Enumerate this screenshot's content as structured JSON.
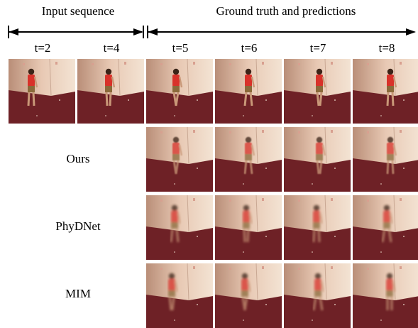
{
  "header": {
    "input_title": "Input sequence",
    "gt_title": "Ground truth and predictions"
  },
  "time_labels": [
    "t=2",
    "t=4",
    "t=5",
    "t=6",
    "t=7",
    "t=8"
  ],
  "row_labels": {
    "ours": "Ours",
    "phydnet": "PhyDNet",
    "mim": "MIM"
  },
  "colors": {
    "floor": "#6e2126",
    "wall": "#e8c9b4",
    "shirt": "#d8322a",
    "shorts": "#8a6a3a"
  }
}
